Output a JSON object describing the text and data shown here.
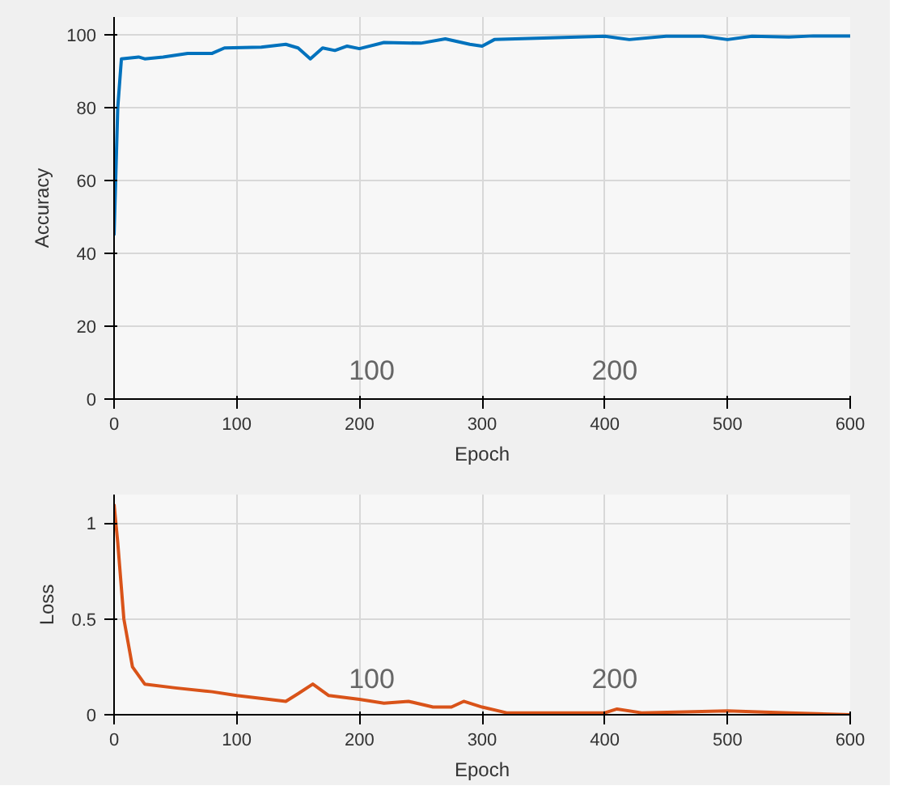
{
  "chart_data": [
    {
      "type": "line",
      "xlabel": "Epoch",
      "ylabel": "Accuracy",
      "xlim": [
        0,
        600
      ],
      "ylim": [
        0,
        105
      ],
      "xticks": [
        0,
        100,
        200,
        300,
        400,
        500,
        600
      ],
      "yticks": [
        0,
        20,
        40,
        60,
        80,
        100
      ],
      "grid": true,
      "annotations": [
        "100",
        "200"
      ],
      "x": [
        0,
        3,
        6,
        20,
        25,
        40,
        60,
        80,
        90,
        120,
        140,
        150,
        160,
        170,
        180,
        190,
        200,
        220,
        250,
        270,
        290,
        300,
        310,
        350,
        400,
        420,
        450,
        480,
        500,
        520,
        550,
        570,
        600
      ],
      "series": [
        {
          "color": "#0072bd",
          "values": [
            45,
            80,
            93.5,
            94,
            93.5,
            94,
            95,
            95,
            96.5,
            96.7,
            97.5,
            96.5,
            93.5,
            96.5,
            95.8,
            97,
            96.3,
            98,
            97.8,
            99,
            97.5,
            97,
            98.8,
            99.2,
            99.7,
            98.8,
            99.7,
            99.7,
            98.8,
            99.7,
            99.5,
            99.8,
            99.8
          ]
        }
      ]
    },
    {
      "type": "line",
      "xlabel": "Epoch",
      "ylabel": "Loss",
      "xlim": [
        0,
        600
      ],
      "ylim": [
        0,
        1.15
      ],
      "xticks": [
        0,
        100,
        200,
        300,
        400,
        500,
        600
      ],
      "yticks": [
        0,
        0.5,
        1
      ],
      "grid": true,
      "annotations": [
        "100",
        "200"
      ],
      "x": [
        0,
        3,
        8,
        15,
        25,
        50,
        80,
        100,
        140,
        150,
        162,
        175,
        200,
        220,
        240,
        260,
        275,
        285,
        300,
        320,
        400,
        410,
        430,
        500,
        550,
        600
      ],
      "series": [
        {
          "color": "#d95319",
          "values": [
            1.1,
            0.9,
            0.5,
            0.25,
            0.16,
            0.14,
            0.12,
            0.1,
            0.07,
            0.11,
            0.16,
            0.1,
            0.08,
            0.06,
            0.07,
            0.04,
            0.04,
            0.07,
            0.04,
            0.01,
            0.01,
            0.03,
            0.01,
            0.02,
            0.01,
            0.0
          ]
        }
      ]
    }
  ]
}
